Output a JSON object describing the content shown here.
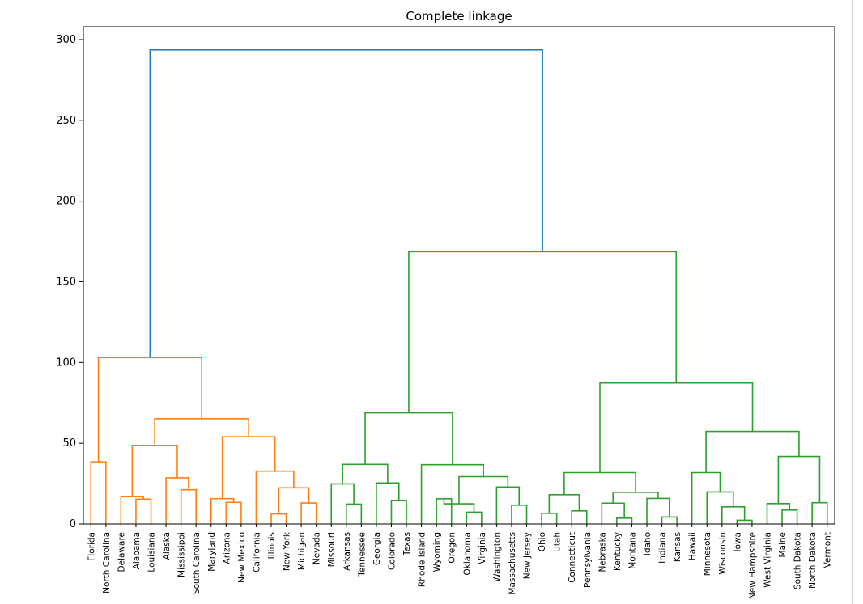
{
  "chart_data": {
    "type": "dendrogram",
    "title": "Complete linkage",
    "xlabel": "",
    "ylabel": "",
    "ylim": [
      0,
      308
    ],
    "yticks": [
      0,
      50,
      100,
      150,
      200,
      250,
      300
    ],
    "leaves": [
      "Florida",
      "North Carolina",
      "Delaware",
      "Alabama",
      "Louisiana",
      "Alaska",
      "Mississippi",
      "South Carolina",
      "Maryland",
      "Arizona",
      "New Mexico",
      "California",
      "Illinois",
      "New York",
      "Michigan",
      "Nevada",
      "Missouri",
      "Arkansas",
      "Tennessee",
      "Georgia",
      "Colorado",
      "Texas",
      "Rhode Island",
      "Wyoming",
      "Oregon",
      "Oklahoma",
      "Virginia",
      "Washington",
      "Massachusetts",
      "New Jersey",
      "Ohio",
      "Utah",
      "Connecticut",
      "Pennsylvania",
      "Nebraska",
      "Kentucky",
      "Montana",
      "Idaho",
      "Indiana",
      "Kansas",
      "Hawaii",
      "Minnesota",
      "Wisconsin",
      "Iowa",
      "New Hampshire",
      "West Virginia",
      "Maine",
      "South Dakota",
      "North Dakota",
      "Vermont"
    ],
    "colors": {
      "root": "#1f77b4",
      "cluster1": "#ff7f0e",
      "cluster2": "#2ca02c"
    },
    "merges": [
      {
        "a": "L:0",
        "b": "L:1",
        "h": 38.5,
        "c": "cluster1"
      },
      {
        "a": "L:3",
        "b": "L:4",
        "h": 15.4,
        "c": "cluster1"
      },
      {
        "a": "L:2",
        "b": "M:1",
        "h": 16.9,
        "c": "cluster1"
      },
      {
        "a": "L:6",
        "b": "L:7",
        "h": 21.2,
        "c": "cluster1"
      },
      {
        "a": "L:5",
        "b": "M:3",
        "h": 28.6,
        "c": "cluster1"
      },
      {
        "a": "M:2",
        "b": "M:4",
        "h": 48.7,
        "c": "cluster1"
      },
      {
        "a": "L:9",
        "b": "L:10",
        "h": 13.4,
        "c": "cluster1"
      },
      {
        "a": "L:8",
        "b": "M:6",
        "h": 15.7,
        "c": "cluster1"
      },
      {
        "a": "L:12",
        "b": "L:13",
        "h": 6.2,
        "c": "cluster1"
      },
      {
        "a": "L:14",
        "b": "L:15",
        "h": 13.0,
        "c": "cluster1"
      },
      {
        "a": "M:8",
        "b": "M:9",
        "h": 22.4,
        "c": "cluster1"
      },
      {
        "a": "L:11",
        "b": "M:10",
        "h": 32.7,
        "c": "cluster1"
      },
      {
        "a": "M:7",
        "b": "M:11",
        "h": 54.0,
        "c": "cluster1"
      },
      {
        "a": "M:5",
        "b": "M:12",
        "h": 65.2,
        "c": "cluster1"
      },
      {
        "a": "M:0",
        "b": "M:13",
        "h": 103.0,
        "c": "cluster1"
      },
      {
        "a": "L:17",
        "b": "L:18",
        "h": 12.3,
        "c": "cluster2"
      },
      {
        "a": "L:16",
        "b": "M:15",
        "h": 24.8,
        "c": "cluster2"
      },
      {
        "a": "L:20",
        "b": "L:21",
        "h": 14.6,
        "c": "cluster2"
      },
      {
        "a": "L:19",
        "b": "M:17",
        "h": 25.4,
        "c": "cluster2"
      },
      {
        "a": "M:16",
        "b": "M:18",
        "h": 36.9,
        "c": "cluster2"
      },
      {
        "a": "L:23",
        "b": "L:24",
        "h": 15.6,
        "c": "cluster2"
      },
      {
        "a": "L:25",
        "b": "L:26",
        "h": 7.3,
        "c": "cluster2"
      },
      {
        "a": "M:20",
        "b": "M:21",
        "h": 12.5,
        "c": "cluster2"
      },
      {
        "a": "L:28",
        "b": "L:29",
        "h": 11.6,
        "c": "cluster2"
      },
      {
        "a": "L:27",
        "b": "M:23",
        "h": 22.9,
        "c": "cluster2"
      },
      {
        "a": "M:22",
        "b": "M:24",
        "h": 29.3,
        "c": "cluster2"
      },
      {
        "a": "L:22",
        "b": "M:25",
        "h": 36.7,
        "c": "cluster2"
      },
      {
        "a": "M:19",
        "b": "M:26",
        "h": 68.8,
        "c": "cluster2"
      },
      {
        "a": "L:30",
        "b": "L:31",
        "h": 6.6,
        "c": "cluster2"
      },
      {
        "a": "L:32",
        "b": "L:33",
        "h": 8.1,
        "c": "cluster2"
      },
      {
        "a": "M:28",
        "b": "M:29",
        "h": 18.1,
        "c": "cluster2"
      },
      {
        "a": "L:35",
        "b": "L:36",
        "h": 3.6,
        "c": "cluster2"
      },
      {
        "a": "L:34",
        "b": "M:31",
        "h": 12.9,
        "c": "cluster2"
      },
      {
        "a": "L:38",
        "b": "L:39",
        "h": 4.3,
        "c": "cluster2"
      },
      {
        "a": "L:37",
        "b": "M:33",
        "h": 15.8,
        "c": "cluster2"
      },
      {
        "a": "M:32",
        "b": "M:34",
        "h": 19.6,
        "c": "cluster2"
      },
      {
        "a": "M:30",
        "b": "M:35",
        "h": 31.8,
        "c": "cluster2"
      },
      {
        "a": "L:43",
        "b": "L:44",
        "h": 2.3,
        "c": "cluster2"
      },
      {
        "a": "L:42",
        "b": "M:37",
        "h": 10.6,
        "c": "cluster2"
      },
      {
        "a": "L:41",
        "b": "M:38",
        "h": 19.8,
        "c": "cluster2"
      },
      {
        "a": "L:40",
        "b": "M:39",
        "h": 31.8,
        "c": "cluster2"
      },
      {
        "a": "L:46",
        "b": "L:47",
        "h": 8.6,
        "c": "cluster2"
      },
      {
        "a": "L:45",
        "b": "M:41",
        "h": 12.6,
        "c": "cluster2"
      },
      {
        "a": "L:48",
        "b": "L:49",
        "h": 13.2,
        "c": "cluster2"
      },
      {
        "a": "M:42",
        "b": "M:43",
        "h": 41.8,
        "c": "cluster2"
      },
      {
        "a": "M:40",
        "b": "M:44",
        "h": 57.3,
        "c": "cluster2"
      },
      {
        "a": "M:36",
        "b": "M:45",
        "h": 87.3,
        "c": "cluster2"
      },
      {
        "a": "M:27",
        "b": "M:46",
        "h": 168.6,
        "c": "cluster2"
      },
      {
        "a": "M:14",
        "b": "M:47",
        "h": 293.6,
        "c": "root"
      }
    ]
  }
}
